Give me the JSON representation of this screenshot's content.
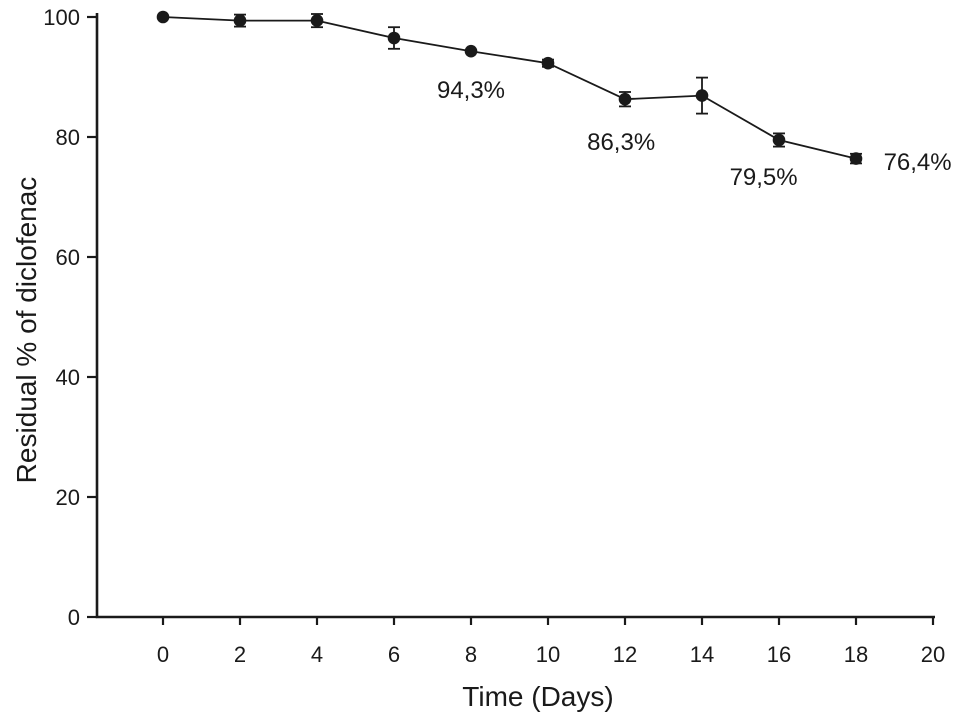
{
  "figure": {
    "background": "#ffffff",
    "ink_color": "#1a1a1a"
  },
  "chart_data": {
    "type": "line",
    "title": "",
    "xlabel": "Time (Days)",
    "ylabel": "Residual % of diclofenac",
    "x": [
      0,
      2,
      4,
      6,
      8,
      10,
      12,
      14,
      16,
      18
    ],
    "series": [
      {
        "name": "Residual % of diclofenac",
        "values": [
          100,
          99.4,
          99.4,
          96.5,
          94.3,
          92.3,
          86.3,
          86.9,
          79.5,
          76.4
        ],
        "errors": [
          0,
          1.0,
          1.1,
          1.8,
          0,
          0.6,
          1.2,
          3.0,
          1.1,
          0.8
        ]
      }
    ],
    "xlim": [
      -1.7,
      20.3
    ],
    "ylim": [
      0,
      100
    ],
    "xticks": [
      0,
      2,
      4,
      6,
      8,
      10,
      12,
      14,
      16,
      18,
      20
    ],
    "yticks": [
      0,
      20,
      40,
      60,
      80,
      100
    ],
    "grid": false,
    "legend_position": "none",
    "marker": "filled-circle",
    "line_style": "solid",
    "annotations": [
      {
        "text": "94,3%",
        "x": 8.0,
        "y": 87.8
      },
      {
        "text": "86,3%",
        "x": 11.9,
        "y": 79.2
      },
      {
        "text": "79,5%",
        "x": 15.6,
        "y": 73.3
      },
      {
        "text": "76,4%",
        "x": 19.6,
        "y": 75.8
      }
    ]
  }
}
